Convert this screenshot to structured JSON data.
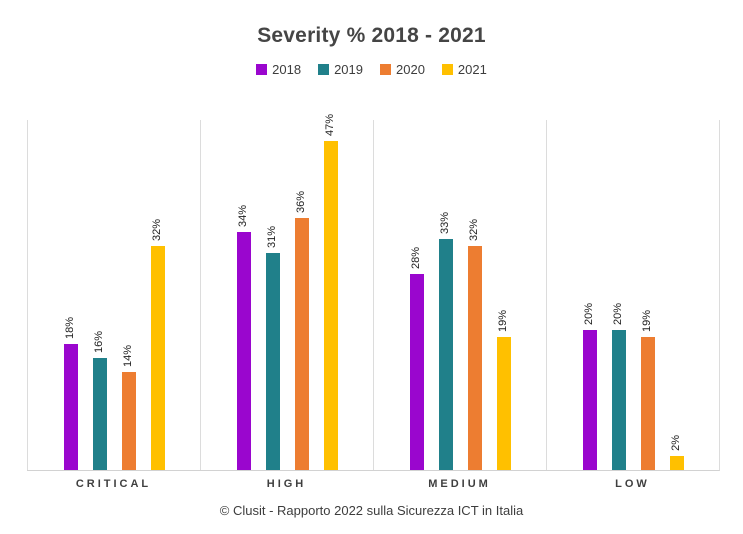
{
  "title": "Severity % 2018 - 2021",
  "footer": "© Clusit - Rapporto 2022 sulla Sicurezza ICT in Italia",
  "colors": {
    "series_2018": "#9a06ce",
    "series_2019": "#20808a",
    "series_2020": "#ed7d31",
    "series_2021": "#ffc000",
    "gridline": "#dcdcdc",
    "axis_line": "#d2d2d2",
    "title_text": "#454545",
    "label_text": "#1f1f1f"
  },
  "chart_data": {
    "type": "bar",
    "title": "Severity % 2018 - 2021",
    "categories": [
      "CRITICAL",
      "HIGH",
      "MEDIUM",
      "LOW"
    ],
    "series": [
      {
        "name": "2018",
        "color": "#9a06ce",
        "values": [
          18,
          34,
          28,
          20
        ]
      },
      {
        "name": "2019",
        "color": "#20808a",
        "values": [
          16,
          31,
          33,
          20
        ]
      },
      {
        "name": "2020",
        "color": "#ed7d31",
        "values": [
          14,
          36,
          32,
          19
        ]
      },
      {
        "name": "2021",
        "color": "#ffc000",
        "values": [
          32,
          47,
          19,
          2
        ]
      }
    ],
    "xlabel": "",
    "ylabel": "",
    "ylim": [
      0,
      50
    ],
    "value_label_format": "{v}%",
    "value_label_rotation": 90,
    "legend_position": "top",
    "grid": "vertical-panel-separators-only"
  }
}
